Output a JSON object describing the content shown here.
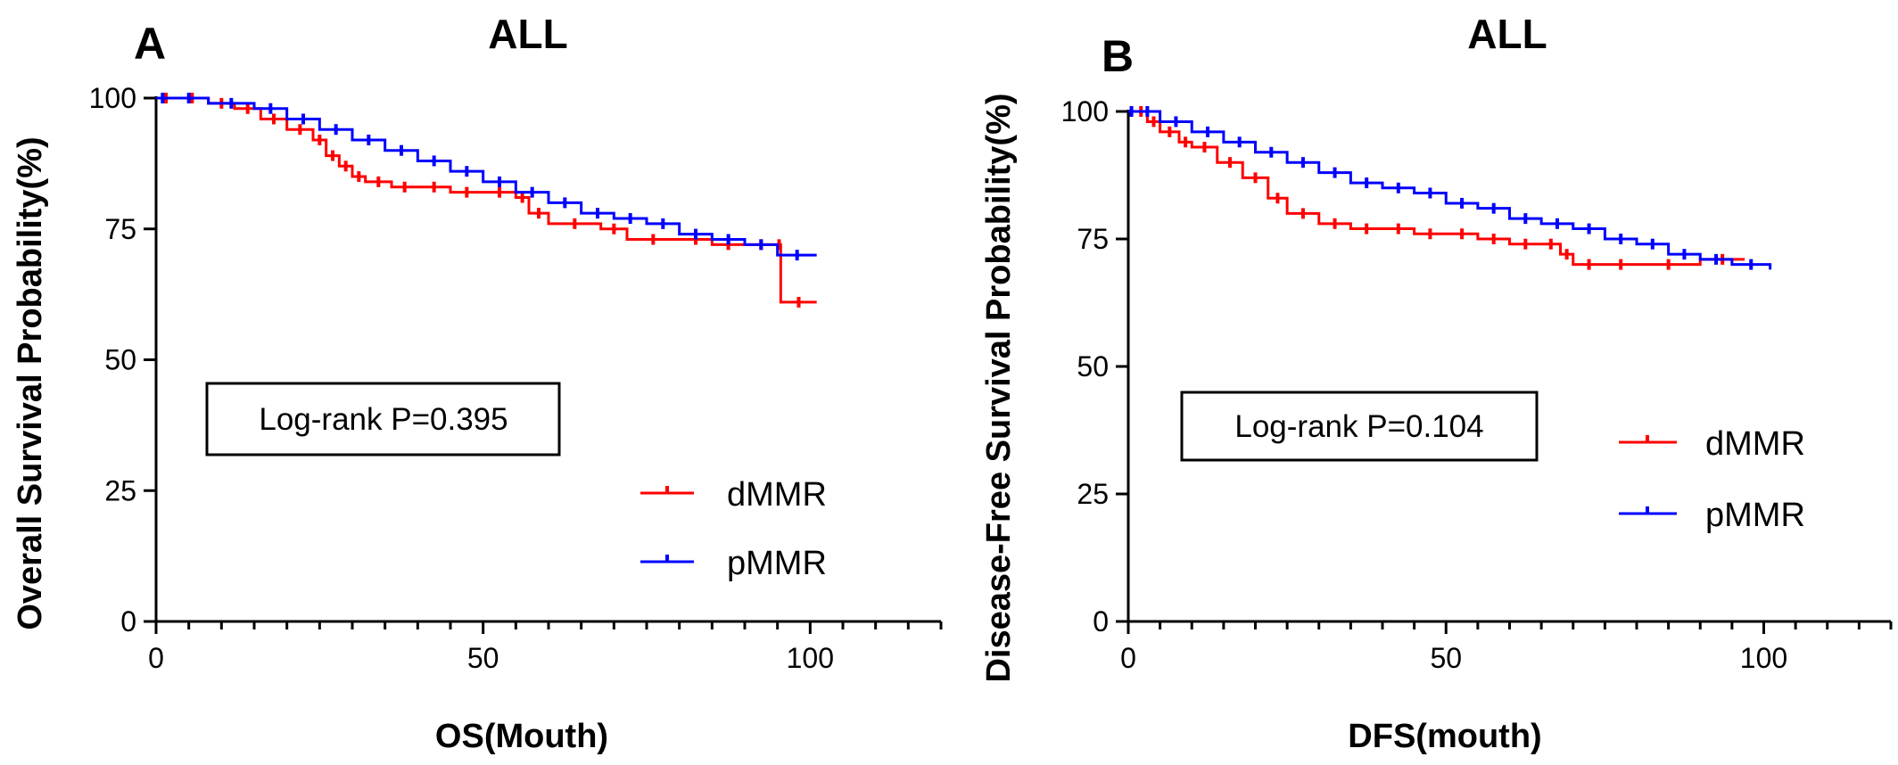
{
  "chart_data": [
    {
      "type": "line",
      "panel_label": "A",
      "title": "ALL",
      "xlabel": "OS(Mouth)",
      "ylabel": "Overall Survival Probability(%)",
      "xlim": [
        0,
        120
      ],
      "ylim": [
        0,
        100
      ],
      "xticks": [
        "0",
        "50",
        "100"
      ],
      "yticks": [
        "0",
        "25",
        "50",
        "75",
        "100"
      ],
      "annotation": "Log-rank P=0.395",
      "legend_position": "lower-right",
      "series": [
        {
          "name": "dMMR",
          "color": "#ff0000",
          "x": [
            0,
            3,
            8,
            12,
            16,
            20,
            24,
            26,
            28,
            30,
            32,
            36,
            40,
            45,
            50,
            55,
            57,
            60,
            68,
            72,
            80,
            85,
            90,
            95,
            95.5,
            101
          ],
          "y": [
            100,
            100,
            99,
            98,
            96,
            94,
            92,
            89,
            87,
            85,
            84,
            83,
            83,
            82,
            82,
            81,
            78,
            76,
            75,
            73,
            73,
            72,
            72,
            72,
            61,
            61
          ]
        },
        {
          "name": "pMMR",
          "color": "#0000ff",
          "x": [
            0,
            2,
            8,
            15,
            20,
            25,
            30,
            35,
            40,
            45,
            50,
            55,
            60,
            65,
            70,
            75,
            80,
            85,
            90,
            95,
            101
          ],
          "y": [
            100,
            100,
            99,
            98,
            96,
            94,
            92,
            90,
            88,
            86,
            84,
            82,
            80,
            78,
            77,
            76,
            74,
            73,
            72,
            70,
            70
          ]
        }
      ]
    },
    {
      "type": "line",
      "panel_label": "B",
      "title": "ALL",
      "xlabel": "DFS(mouth)",
      "ylabel": "Disease-Free Survival Probability(%)",
      "xlim": [
        0,
        120
      ],
      "ylim": [
        0,
        100
      ],
      "xticks": [
        "0",
        "50",
        "100"
      ],
      "yticks": [
        "0",
        "25",
        "50",
        "75",
        "100"
      ],
      "annotation": "Log-rank P=0.104",
      "legend_position": "right",
      "series": [
        {
          "name": "dMMR",
          "color": "#ff0000",
          "x": [
            0,
            1,
            3,
            5,
            8,
            10,
            14,
            18,
            22,
            25,
            30,
            35,
            40,
            45,
            50,
            55,
            60,
            65,
            68,
            70,
            75,
            80,
            90,
            97
          ],
          "y": [
            100,
            100,
            98,
            96,
            94,
            93,
            90,
            87,
            83,
            80,
            78,
            77,
            77,
            76,
            76,
            75,
            74,
            74,
            72,
            70,
            70,
            70,
            71,
            71
          ]
        },
        {
          "name": "pMMR",
          "color": "#0000ff",
          "x": [
            0,
            1,
            5,
            10,
            15,
            20,
            25,
            30,
            35,
            40,
            45,
            50,
            55,
            60,
            65,
            70,
            75,
            80,
            85,
            90,
            95,
            101
          ],
          "y": [
            100,
            100,
            98,
            96,
            94,
            92,
            90,
            88,
            86,
            85,
            84,
            82,
            81,
            79,
            78,
            77,
            75,
            74,
            72,
            71,
            70,
            69
          ]
        }
      ]
    }
  ]
}
